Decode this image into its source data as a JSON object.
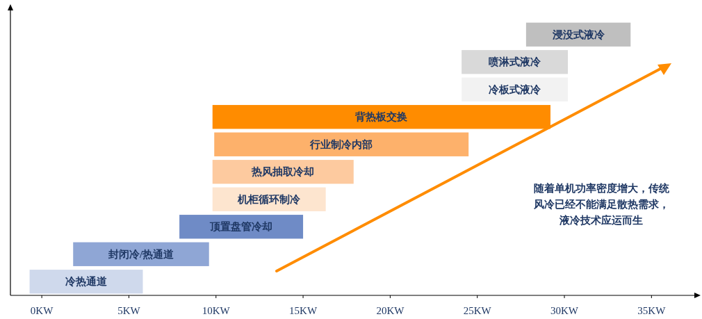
{
  "chart_data": {
    "type": "bar",
    "orientation": "horizontal",
    "categories": [
      "浸没式液冷",
      "喷淋式液冷",
      "冷板式液冷",
      "背热板交换",
      "行业制冷内部",
      "热风抽取冷却",
      "机柜循环制冷",
      "顶置盘管冷却",
      "封闭冷/热通道",
      "冷热通道"
    ],
    "base": [
      27.8,
      24.1,
      24.1,
      9.8,
      9.9,
      9.8,
      9.8,
      7.9,
      1.8,
      -0.7
    ],
    "values": [
      6.0,
      6.1,
      6.1,
      19.4,
      14.6,
      8.1,
      6.5,
      7.1,
      7.8,
      6.5
    ],
    "colors": [
      "#bfbfbf",
      "#d9d9d9",
      "#f2f2f2",
      "#ff8c00",
      "#fdb16b",
      "#fdca9f",
      "#fde5cf",
      "#6f8bc6",
      "#8fa6d5",
      "#cfd9ec"
    ],
    "xlim": [
      -1.8,
      37.5
    ],
    "xticks": [
      {
        "value": 0,
        "label": "0KW"
      },
      {
        "value": 5,
        "label": "5KW"
      },
      {
        "value": 10,
        "label": "10KW"
      },
      {
        "value": 15,
        "label": "15KW"
      },
      {
        "value": 20,
        "label": "20KW"
      },
      {
        "value": 25,
        "label": "25KW"
      },
      {
        "value": 30,
        "label": "30KW"
      },
      {
        "value": 35,
        "label": "35KW"
      }
    ],
    "annotations": [
      "随着单机功率密度增大，传统风冷已经不能满足散热需求，液冷技术应运而生"
    ],
    "grid": false
  }
}
